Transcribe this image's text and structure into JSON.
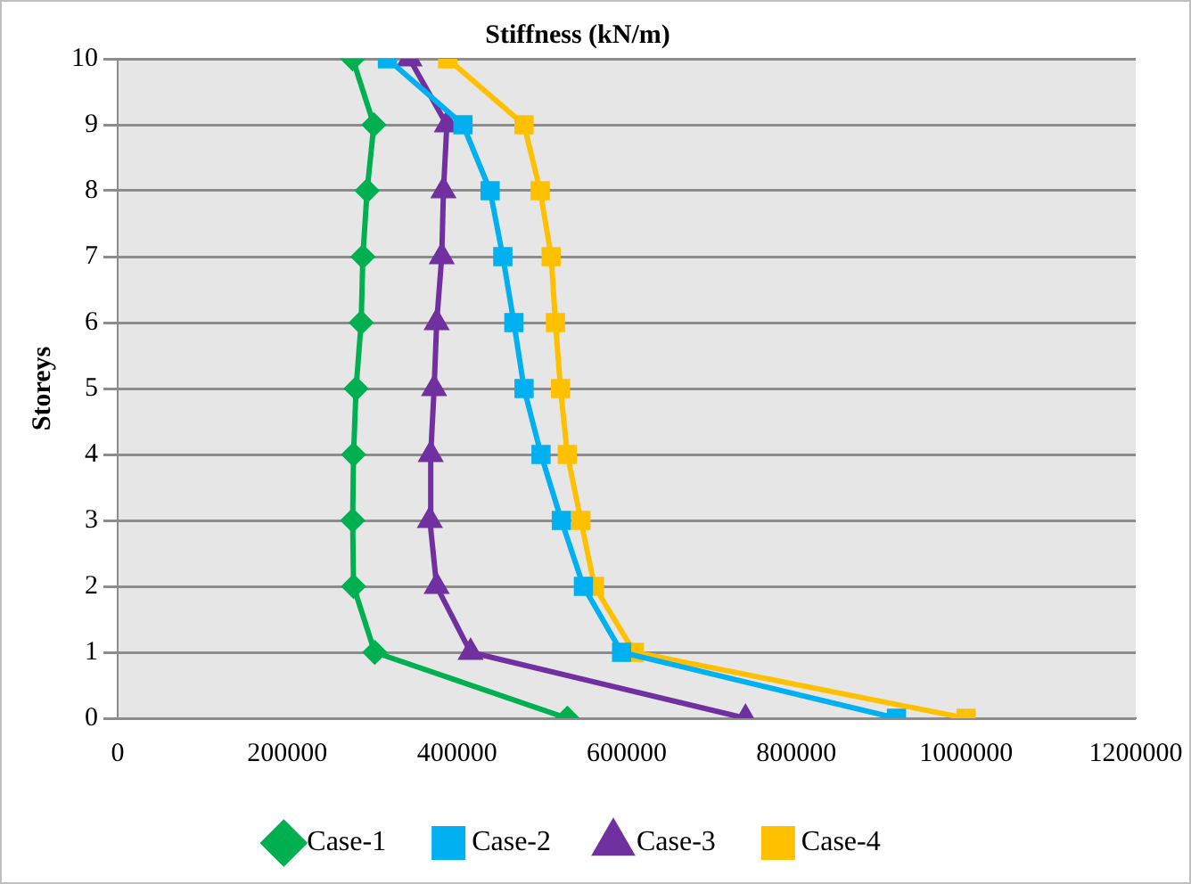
{
  "chart_data": {
    "type": "line",
    "title": "Stiffness (kN/m)",
    "ylabel": "Storeys",
    "xlim": [
      0,
      1200000
    ],
    "xticks": [
      0,
      200000,
      400000,
      600000,
      800000,
      1000000,
      1200000
    ],
    "ylim": [
      0,
      10
    ],
    "yticks": [
      0,
      1,
      2,
      3,
      4,
      5,
      6,
      7,
      8,
      9,
      10
    ],
    "grid": "y",
    "legend": "bottom",
    "line_style": "solid",
    "series": [
      {
        "name": "Case-1",
        "color": "#00b050",
        "marker": "diamond",
        "x": [
          530000,
          303000,
          278000,
          277000,
          278000,
          281000,
          287000,
          289000,
          294000,
          302000,
          277000
        ],
        "values": [
          0,
          1,
          2,
          3,
          4,
          5,
          6,
          7,
          8,
          9,
          10
        ]
      },
      {
        "name": "Case-2",
        "color": "#00b0f0",
        "marker": "square",
        "x": [
          918000,
          594000,
          549000,
          523000,
          499000,
          479000,
          467000,
          454000,
          439000,
          407000,
          318000
        ],
        "values": [
          0,
          1,
          2,
          3,
          4,
          5,
          6,
          7,
          8,
          9,
          10
        ]
      },
      {
        "name": "Case-3",
        "color": "#7030a0",
        "marker": "triangle",
        "x": [
          740000,
          416000,
          376000,
          368000,
          369000,
          373000,
          376000,
          382000,
          384000,
          388000,
          344000
        ],
        "values": [
          0,
          1,
          2,
          3,
          4,
          5,
          6,
          7,
          8,
          9,
          10
        ]
      },
      {
        "name": "Case-4",
        "color": "#ffc000",
        "marker": "square",
        "x": [
          1000000,
          609000,
          562000,
          546000,
          530000,
          522000,
          516000,
          511000,
          498000,
          479000,
          389000
        ],
        "values": [
          0,
          1,
          2,
          3,
          4,
          5,
          6,
          7,
          8,
          9,
          10
        ]
      }
    ]
  }
}
